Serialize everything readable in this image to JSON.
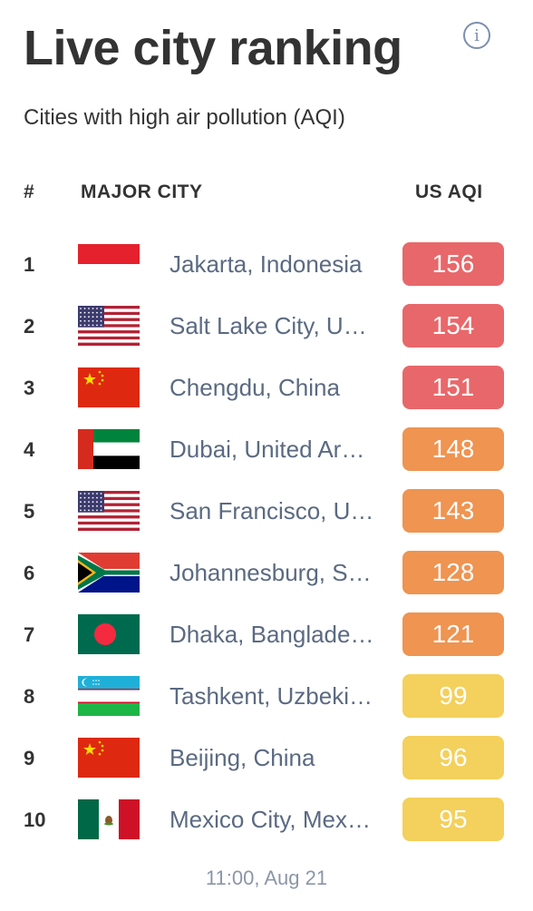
{
  "title": "Live city ranking",
  "subtitle": "Cities with high air pollution (AQI)",
  "columns": {
    "rank": "#",
    "city": "MAJOR CITY",
    "aqi": "US AQI"
  },
  "rows": [
    {
      "rank": "1",
      "flag": "indonesia-flag",
      "city": "Jakarta, Indonesia",
      "aqi": "156",
      "color": "#e8676a"
    },
    {
      "rank": "2",
      "flag": "usa-flag",
      "city": "Salt Lake City, USA",
      "aqi": "154",
      "color": "#e8676a"
    },
    {
      "rank": "3",
      "flag": "china-flag",
      "city": "Chengdu, China",
      "aqi": "151",
      "color": "#e8676a"
    },
    {
      "rank": "4",
      "flag": "uae-flag",
      "city": "Dubai, United Arab Emirates",
      "aqi": "148",
      "color": "#ef9451"
    },
    {
      "rank": "5",
      "flag": "usa-flag",
      "city": "San Francisco, USA",
      "aqi": "143",
      "color": "#ef9451"
    },
    {
      "rank": "6",
      "flag": "south-africa-flag",
      "city": "Johannesburg, South Africa",
      "aqi": "128",
      "color": "#ef9451"
    },
    {
      "rank": "7",
      "flag": "bangladesh-flag",
      "city": "Dhaka, Bangladesh",
      "aqi": "121",
      "color": "#ef9451"
    },
    {
      "rank": "8",
      "flag": "uzbekistan-flag",
      "city": "Tashkent, Uzbekistan",
      "aqi": "99",
      "color": "#f4d05c"
    },
    {
      "rank": "9",
      "flag": "china-flag",
      "city": "Beijing, China",
      "aqi": "96",
      "color": "#f4d05c"
    },
    {
      "rank": "10",
      "flag": "mexico-flag",
      "city": "Mexico City, Mexico",
      "aqi": "95",
      "color": "#f4d05c"
    }
  ],
  "timestamp": "11:00, Aug 21",
  "info_icon": "info-icon"
}
